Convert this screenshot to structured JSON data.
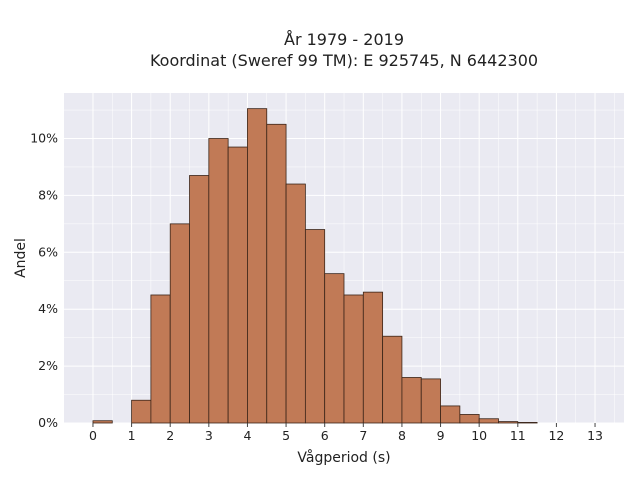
{
  "chart_data": {
    "type": "bar",
    "title_line1": "År 1979 - 2019",
    "title_line2": "Koordinat (Sweref 99 TM): E 925745, N 6442300",
    "xlabel": "Vågperiod (s)",
    "ylabel": "Andel",
    "x_ticks": [
      "0",
      "1",
      "2",
      "3",
      "4",
      "5",
      "6",
      "7",
      "8",
      "9",
      "10",
      "11",
      "12",
      "13"
    ],
    "y_ticks": [
      "0%",
      "2%",
      "4%",
      "6%",
      "8%",
      "10%"
    ],
    "xlim": [
      -0.75,
      13.75
    ],
    "ylim": [
      0,
      11.6
    ],
    "bin_width": 0.5,
    "grid": true,
    "bar_color": "#c17a56",
    "bar_edge_color": "#3a2418",
    "plot_background": "#eaeaf2",
    "bins": [
      {
        "x0": 0.0,
        "value": 0.08
      },
      {
        "x0": 0.5,
        "value": 0.0
      },
      {
        "x0": 1.0,
        "value": 0.8
      },
      {
        "x0": 1.5,
        "value": 4.5
      },
      {
        "x0": 2.0,
        "value": 7.0
      },
      {
        "x0": 2.5,
        "value": 8.7
      },
      {
        "x0": 3.0,
        "value": 10.0
      },
      {
        "x0": 3.5,
        "value": 9.7
      },
      {
        "x0": 4.0,
        "value": 11.05
      },
      {
        "x0": 4.5,
        "value": 10.5
      },
      {
        "x0": 5.0,
        "value": 8.4
      },
      {
        "x0": 5.5,
        "value": 6.8
      },
      {
        "x0": 6.0,
        "value": 5.25
      },
      {
        "x0": 6.5,
        "value": 4.5
      },
      {
        "x0": 7.0,
        "value": 4.6
      },
      {
        "x0": 7.5,
        "value": 3.05
      },
      {
        "x0": 8.0,
        "value": 1.6
      },
      {
        "x0": 8.5,
        "value": 1.55
      },
      {
        "x0": 9.0,
        "value": 0.6
      },
      {
        "x0": 9.5,
        "value": 0.3
      },
      {
        "x0": 10.0,
        "value": 0.15
      },
      {
        "x0": 10.5,
        "value": 0.05
      },
      {
        "x0": 11.0,
        "value": 0.02
      }
    ]
  }
}
